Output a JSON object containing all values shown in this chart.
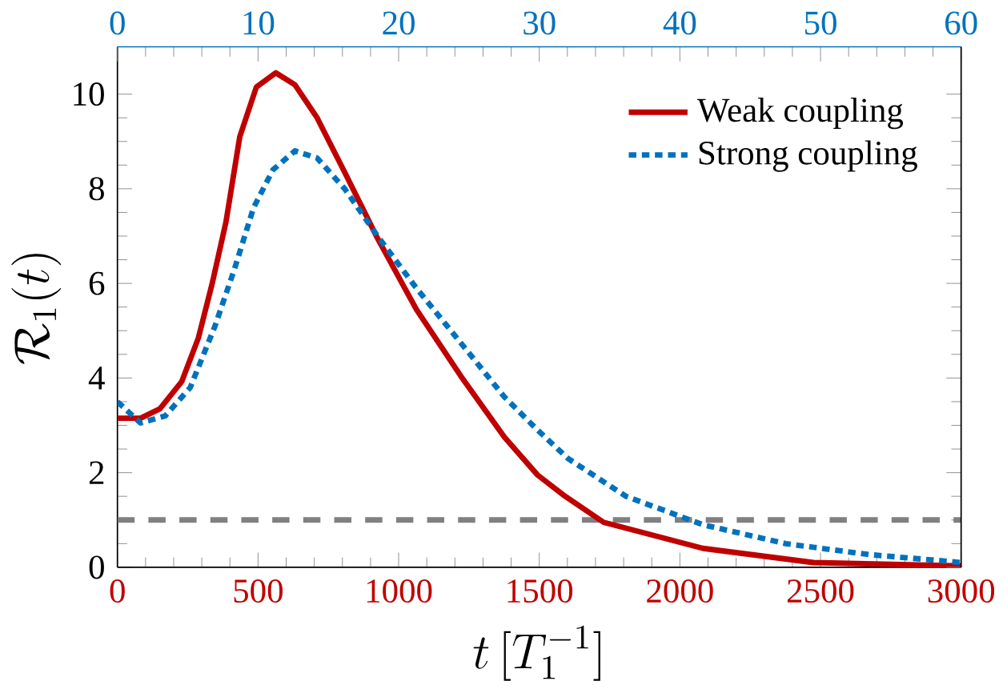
{
  "chart_data": {
    "type": "line",
    "xlabel": "t\\,[T_1^{-1}]",
    "ylabel": "\\mathcal{R}_1(t)",
    "xlim": [
      0,
      3000
    ],
    "xticks": [
      0,
      500,
      1000,
      1500,
      2000,
      2500,
      3000
    ],
    "x2lim": [
      0,
      60
    ],
    "x2ticks": [
      0,
      10,
      20,
      30,
      40,
      50,
      60
    ],
    "ylim": [
      0,
      11
    ],
    "yticks": [
      0,
      2,
      4,
      6,
      8,
      10
    ],
    "legend": "top right",
    "grid": false,
    "marker": "none",
    "ref_lines": [
      {
        "axis": "y",
        "value": 1,
        "color": "#808080",
        "line_style": "dashed"
      }
    ],
    "series": [
      {
        "name": "Weak coupling",
        "color": "#c00000",
        "line_style": "solid",
        "x": [
          0,
          82,
          151,
          229,
          288,
          337,
          386,
          435,
          494,
          563,
          631,
          710,
          808,
          925,
          1063,
          1220,
          1376,
          1494,
          1592,
          1729,
          2082,
          2475,
          3000
        ],
        "values": [
          3.15,
          3.15,
          3.35,
          3.93,
          4.85,
          6.0,
          7.3,
          9.1,
          10.15,
          10.45,
          10.2,
          9.5,
          8.35,
          6.95,
          5.45,
          4.05,
          2.75,
          1.95,
          1.5,
          0.95,
          0.4,
          0.1,
          0.03
        ]
      },
      {
        "name": "Strong coupling",
        "color": "#0072bd",
        "line_style": "dotted",
        "x": [
          0,
          82,
          170,
          259,
          347,
          416,
          484,
          553,
          631,
          710,
          808,
          925,
          1063,
          1220,
          1376,
          1494,
          1602,
          1808,
          2082,
          2376,
          2671,
          2965,
          3000
        ],
        "values": [
          3.5,
          3.05,
          3.2,
          3.8,
          5.1,
          6.3,
          7.6,
          8.4,
          8.8,
          8.65,
          8.0,
          7.0,
          5.9,
          4.75,
          3.6,
          2.9,
          2.3,
          1.5,
          0.9,
          0.5,
          0.27,
          0.12,
          0.1
        ]
      }
    ]
  }
}
